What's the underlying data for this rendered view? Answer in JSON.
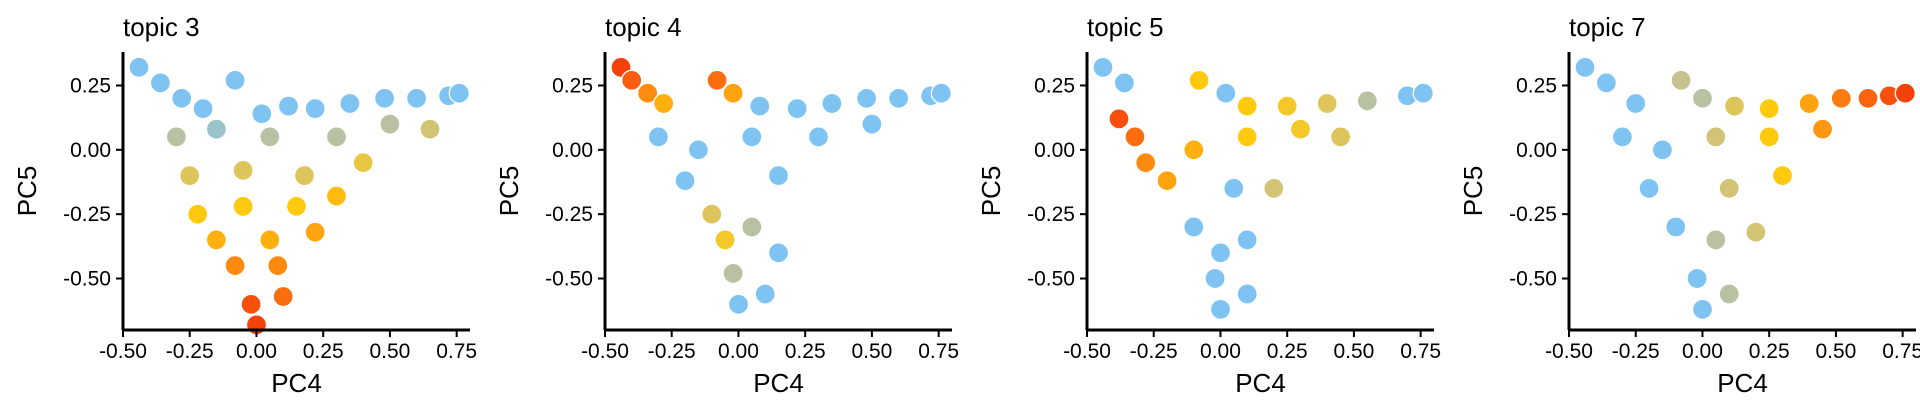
{
  "chart_data": [
    {
      "type": "scatter",
      "title": "topic 3",
      "xlabel": "PC4",
      "ylabel": "PC5",
      "xlim": [
        -0.5,
        0.8
      ],
      "ylim": [
        -0.7,
        0.38
      ],
      "xticks": [
        "-0.50",
        "-0.25",
        "0.00",
        "0.25",
        "0.50",
        "0.75"
      ],
      "yticks": [
        "0.25",
        "0.00",
        "-0.25",
        "-0.50"
      ],
      "grid": false,
      "legend": "none",
      "color_scale": [
        "#7ec3f2",
        "#c7c28f",
        "#ffc90e",
        "#ff8a10",
        "#f5410c"
      ],
      "points": [
        {
          "x": -0.44,
          "y": 0.32,
          "c": 0
        },
        {
          "x": -0.36,
          "y": 0.26,
          "c": 0
        },
        {
          "x": -0.28,
          "y": 0.2,
          "c": 0
        },
        {
          "x": -0.2,
          "y": 0.16,
          "c": 0
        },
        {
          "x": -0.08,
          "y": 0.27,
          "c": 0
        },
        {
          "x": 0.02,
          "y": 0.14,
          "c": 0
        },
        {
          "x": 0.12,
          "y": 0.17,
          "c": 0
        },
        {
          "x": 0.22,
          "y": 0.16,
          "c": 0
        },
        {
          "x": 0.35,
          "y": 0.18,
          "c": 0
        },
        {
          "x": 0.48,
          "y": 0.2,
          "c": 0
        },
        {
          "x": 0.6,
          "y": 0.2,
          "c": 0
        },
        {
          "x": 0.72,
          "y": 0.21,
          "c": 0
        },
        {
          "x": 0.76,
          "y": 0.22,
          "c": 0
        },
        {
          "x": -0.3,
          "y": 0.05,
          "c": 0.2
        },
        {
          "x": -0.15,
          "y": 0.08,
          "c": 0.1
        },
        {
          "x": 0.05,
          "y": 0.05,
          "c": 0.2
        },
        {
          "x": 0.3,
          "y": 0.05,
          "c": 0.2
        },
        {
          "x": 0.5,
          "y": 0.1,
          "c": 0.2
        },
        {
          "x": 0.65,
          "y": 0.08,
          "c": 0.3
        },
        {
          "x": -0.25,
          "y": -0.1,
          "c": 0.35
        },
        {
          "x": -0.05,
          "y": -0.08,
          "c": 0.35
        },
        {
          "x": 0.18,
          "y": -0.1,
          "c": 0.35
        },
        {
          "x": 0.4,
          "y": -0.05,
          "c": 0.4
        },
        {
          "x": -0.22,
          "y": -0.25,
          "c": 0.5
        },
        {
          "x": -0.05,
          "y": -0.22,
          "c": 0.5
        },
        {
          "x": 0.15,
          "y": -0.22,
          "c": 0.5
        },
        {
          "x": 0.3,
          "y": -0.18,
          "c": 0.55
        },
        {
          "x": -0.15,
          "y": -0.35,
          "c": 0.6
        },
        {
          "x": 0.05,
          "y": -0.35,
          "c": 0.6
        },
        {
          "x": 0.22,
          "y": -0.32,
          "c": 0.65
        },
        {
          "x": -0.08,
          "y": -0.45,
          "c": 0.75
        },
        {
          "x": 0.08,
          "y": -0.45,
          "c": 0.75
        },
        {
          "x": 0.1,
          "y": -0.57,
          "c": 0.85
        },
        {
          "x": -0.02,
          "y": -0.6,
          "c": 0.95
        },
        {
          "x": 0.0,
          "y": -0.68,
          "c": 1.0
        }
      ]
    },
    {
      "type": "scatter",
      "title": "topic 4",
      "xlabel": "PC4",
      "ylabel": "PC5",
      "xlim": [
        -0.5,
        0.8
      ],
      "ylim": [
        -0.7,
        0.38
      ],
      "xticks": [
        "-0.50",
        "-0.25",
        "0.00",
        "0.25",
        "0.50",
        "0.75"
      ],
      "yticks": [
        "0.25",
        "0.00",
        "-0.25",
        "-0.50"
      ],
      "grid": false,
      "legend": "none",
      "color_scale": [
        "#7ec3f2",
        "#c7c28f",
        "#ffc90e",
        "#ff8a10",
        "#f5410c"
      ],
      "points": [
        {
          "x": -0.44,
          "y": 0.32,
          "c": 1.0
        },
        {
          "x": -0.4,
          "y": 0.27,
          "c": 0.9
        },
        {
          "x": -0.34,
          "y": 0.22,
          "c": 0.75
        },
        {
          "x": -0.28,
          "y": 0.18,
          "c": 0.6
        },
        {
          "x": -0.08,
          "y": 0.27,
          "c": 0.85
        },
        {
          "x": -0.02,
          "y": 0.22,
          "c": 0.65
        },
        {
          "x": 0.08,
          "y": 0.17,
          "c": 0
        },
        {
          "x": 0.22,
          "y": 0.16,
          "c": 0
        },
        {
          "x": 0.35,
          "y": 0.18,
          "c": 0
        },
        {
          "x": 0.48,
          "y": 0.2,
          "c": 0
        },
        {
          "x": 0.6,
          "y": 0.2,
          "c": 0
        },
        {
          "x": 0.72,
          "y": 0.21,
          "c": 0
        },
        {
          "x": 0.76,
          "y": 0.22,
          "c": 0
        },
        {
          "x": -0.3,
          "y": 0.05,
          "c": 0
        },
        {
          "x": -0.15,
          "y": 0.0,
          "c": 0
        },
        {
          "x": 0.05,
          "y": 0.05,
          "c": 0
        },
        {
          "x": 0.3,
          "y": 0.05,
          "c": 0
        },
        {
          "x": 0.5,
          "y": 0.1,
          "c": 0
        },
        {
          "x": -0.2,
          "y": -0.12,
          "c": 0
        },
        {
          "x": 0.15,
          "y": -0.1,
          "c": 0
        },
        {
          "x": -0.1,
          "y": -0.25,
          "c": 0.35
        },
        {
          "x": -0.05,
          "y": -0.35,
          "c": 0.45
        },
        {
          "x": 0.05,
          "y": -0.3,
          "c": 0.2
        },
        {
          "x": 0.15,
          "y": -0.4,
          "c": 0
        },
        {
          "x": -0.02,
          "y": -0.48,
          "c": 0.2
        },
        {
          "x": 0.0,
          "y": -0.6,
          "c": 0
        },
        {
          "x": 0.1,
          "y": -0.56,
          "c": 0
        }
      ]
    },
    {
      "type": "scatter",
      "title": "topic 5",
      "xlabel": "PC4",
      "ylabel": "PC5",
      "xlim": [
        -0.5,
        0.8
      ],
      "ylim": [
        -0.7,
        0.38
      ],
      "xticks": [
        "-0.50",
        "-0.25",
        "0.00",
        "0.25",
        "0.50",
        "0.75"
      ],
      "yticks": [
        "0.25",
        "0.00",
        "-0.25",
        "-0.50"
      ],
      "grid": false,
      "legend": "none",
      "color_scale": [
        "#7ec3f2",
        "#c7c28f",
        "#ffc90e",
        "#ff8a10",
        "#f5410c"
      ],
      "points": [
        {
          "x": -0.44,
          "y": 0.32,
          "c": 0
        },
        {
          "x": -0.36,
          "y": 0.26,
          "c": 0
        },
        {
          "x": -0.08,
          "y": 0.27,
          "c": 0.5
        },
        {
          "x": 0.02,
          "y": 0.22,
          "c": 0
        },
        {
          "x": 0.1,
          "y": 0.17,
          "c": 0.5
        },
        {
          "x": 0.25,
          "y": 0.17,
          "c": 0.45
        },
        {
          "x": 0.4,
          "y": 0.18,
          "c": 0.35
        },
        {
          "x": 0.55,
          "y": 0.19,
          "c": 0.2
        },
        {
          "x": 0.7,
          "y": 0.21,
          "c": 0
        },
        {
          "x": 0.76,
          "y": 0.22,
          "c": 0
        },
        {
          "x": -0.38,
          "y": 0.12,
          "c": 0.95
        },
        {
          "x": -0.32,
          "y": 0.05,
          "c": 0.85
        },
        {
          "x": -0.28,
          "y": -0.05,
          "c": 0.75
        },
        {
          "x": -0.2,
          "y": -0.12,
          "c": 0.65
        },
        {
          "x": -0.1,
          "y": 0.0,
          "c": 0.6
        },
        {
          "x": 0.1,
          "y": 0.05,
          "c": 0.5
        },
        {
          "x": 0.3,
          "y": 0.08,
          "c": 0.45
        },
        {
          "x": 0.45,
          "y": 0.05,
          "c": 0.35
        },
        {
          "x": 0.05,
          "y": -0.15,
          "c": 0
        },
        {
          "x": 0.2,
          "y": -0.15,
          "c": 0.3
        },
        {
          "x": -0.1,
          "y": -0.3,
          "c": 0
        },
        {
          "x": 0.0,
          "y": -0.4,
          "c": 0
        },
        {
          "x": 0.1,
          "y": -0.35,
          "c": 0
        },
        {
          "x": -0.02,
          "y": -0.5,
          "c": 0
        },
        {
          "x": 0.0,
          "y": -0.62,
          "c": 0
        },
        {
          "x": 0.1,
          "y": -0.56,
          "c": 0
        }
      ]
    },
    {
      "type": "scatter",
      "title": "topic 7",
      "xlabel": "PC4",
      "ylabel": "PC5",
      "xlim": [
        -0.5,
        0.8
      ],
      "ylim": [
        -0.7,
        0.38
      ],
      "xticks": [
        "-0.50",
        "-0.25",
        "0.00",
        "0.25",
        "0.50",
        "0.75"
      ],
      "yticks": [
        "0.25",
        "0.00",
        "-0.25",
        "-0.50"
      ],
      "grid": false,
      "legend": "none",
      "color_scale": [
        "#7ec3f2",
        "#c7c28f",
        "#ffc90e",
        "#ff8a10",
        "#f5410c"
      ],
      "points": [
        {
          "x": -0.44,
          "y": 0.32,
          "c": 0
        },
        {
          "x": -0.36,
          "y": 0.26,
          "c": 0
        },
        {
          "x": -0.25,
          "y": 0.18,
          "c": 0
        },
        {
          "x": -0.08,
          "y": 0.27,
          "c": 0.25
        },
        {
          "x": 0.0,
          "y": 0.2,
          "c": 0.2
        },
        {
          "x": 0.12,
          "y": 0.17,
          "c": 0.35
        },
        {
          "x": 0.25,
          "y": 0.16,
          "c": 0.5
        },
        {
          "x": 0.4,
          "y": 0.18,
          "c": 0.65
        },
        {
          "x": 0.52,
          "y": 0.2,
          "c": 0.8
        },
        {
          "x": 0.62,
          "y": 0.2,
          "c": 0.88
        },
        {
          "x": 0.7,
          "y": 0.21,
          "c": 0.95
        },
        {
          "x": 0.76,
          "y": 0.22,
          "c": 1.0
        },
        {
          "x": -0.3,
          "y": 0.05,
          "c": 0
        },
        {
          "x": -0.15,
          "y": 0.0,
          "c": 0
        },
        {
          "x": 0.05,
          "y": 0.05,
          "c": 0.3
        },
        {
          "x": 0.25,
          "y": 0.05,
          "c": 0.5
        },
        {
          "x": 0.45,
          "y": 0.08,
          "c": 0.7
        },
        {
          "x": -0.2,
          "y": -0.15,
          "c": 0
        },
        {
          "x": 0.1,
          "y": -0.15,
          "c": 0.3
        },
        {
          "x": 0.3,
          "y": -0.1,
          "c": 0.5
        },
        {
          "x": -0.1,
          "y": -0.3,
          "c": 0
        },
        {
          "x": 0.05,
          "y": -0.35,
          "c": 0.2
        },
        {
          "x": 0.2,
          "y": -0.32,
          "c": 0.3
        },
        {
          "x": -0.02,
          "y": -0.5,
          "c": 0
        },
        {
          "x": 0.0,
          "y": -0.62,
          "c": 0
        },
        {
          "x": 0.1,
          "y": -0.56,
          "c": 0.2
        }
      ]
    }
  ]
}
